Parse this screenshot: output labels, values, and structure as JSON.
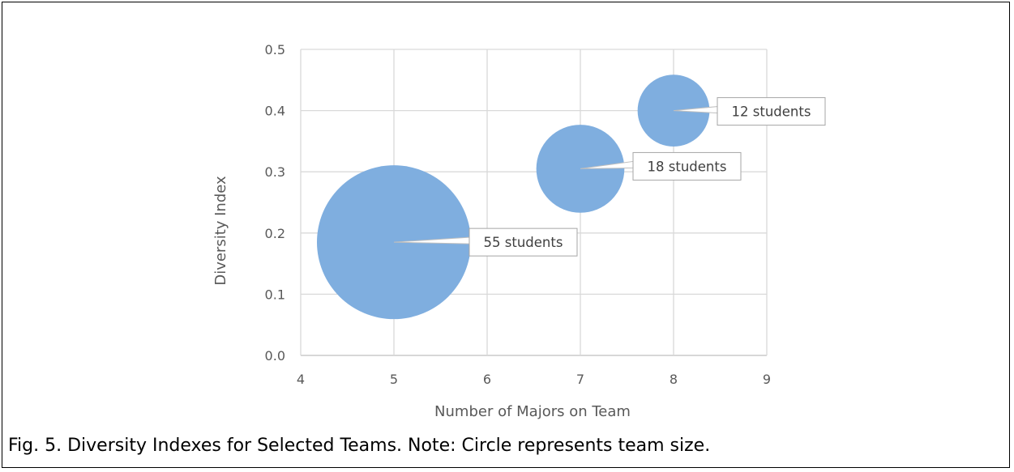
{
  "chart_data": {
    "type": "bubble",
    "xlabel": "Number of Majors on Team",
    "ylabel": "Diversity Index",
    "xlim": [
      4,
      9
    ],
    "ylim": [
      0,
      0.5
    ],
    "x_ticks": [
      "4",
      "5",
      "6",
      "7",
      "8",
      "9"
    ],
    "y_ticks": [
      "0.0",
      "0.1",
      "0.2",
      "0.3",
      "0.4",
      "0.5"
    ],
    "grid": true,
    "points": [
      {
        "x": 5,
        "y": 0.185,
        "size": 55,
        "label": "55 students"
      },
      {
        "x": 7,
        "y": 0.305,
        "size": 18,
        "label": "18 students"
      },
      {
        "x": 8,
        "y": 0.4,
        "size": 12,
        "label": "12 students"
      }
    ],
    "colors": {
      "bubble": "#7FAEDF",
      "grid": "#D9D9D9",
      "axis_text": "#595959"
    }
  },
  "caption": "Fig. 5. Diversity Indexes for Selected Teams. Note: Circle represents team size."
}
